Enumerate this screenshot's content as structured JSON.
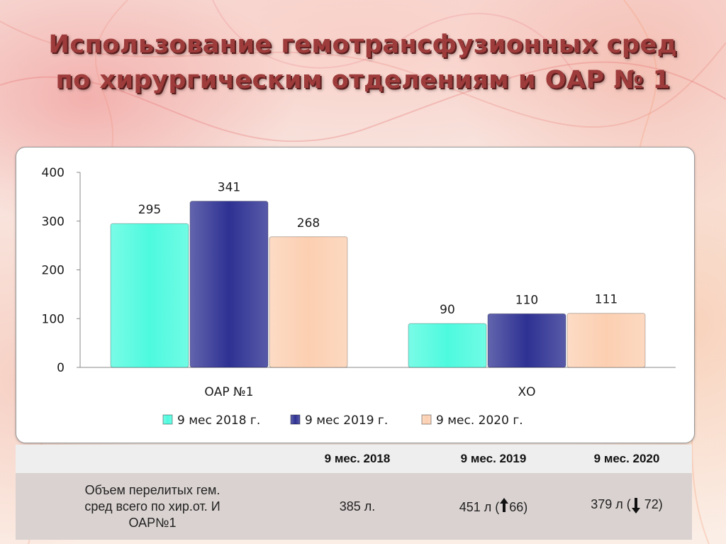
{
  "slide": {
    "title_line1": "Использование гемотрансфузионных сред",
    "title_line2": "по хирургическим отделениям и ОАР № 1"
  },
  "chart_data": {
    "type": "bar",
    "categories": [
      "ОАР №1",
      "ХО"
    ],
    "series": [
      {
        "name": "9 мес 2018 г.",
        "values": [
          295,
          90
        ],
        "color": "#4dfade"
      },
      {
        "name": "9 мес 2019 г.",
        "values": [
          341,
          110
        ],
        "color": "#2e3192"
      },
      {
        "name": "9 мес. 2020 г.",
        "values": [
          268,
          111
        ],
        "color": "#fccfb1"
      }
    ],
    "y_ticks": [
      "0",
      "100",
      "200",
      "300",
      "400"
    ],
    "ylim": [
      0,
      400
    ],
    "grid": false,
    "legend_position": "bottom"
  },
  "summary_table": {
    "headers": [
      "",
      "9 мес. 2018",
      "9 мес. 2019",
      "9 мес. 2020"
    ],
    "row_label_lines": [
      "Объем перелитых гем.",
      "сред всего по хир.от. И",
      "ОАР№1"
    ],
    "value_2018": "385 л.",
    "value_2019_prefix": "451 л (",
    "value_2019_arrow": "up-arrow",
    "value_2019_change": "66)",
    "value_2020_prefix": "379 л (",
    "value_2020_arrow": "down-arrow",
    "value_2020_change": " 72)"
  }
}
